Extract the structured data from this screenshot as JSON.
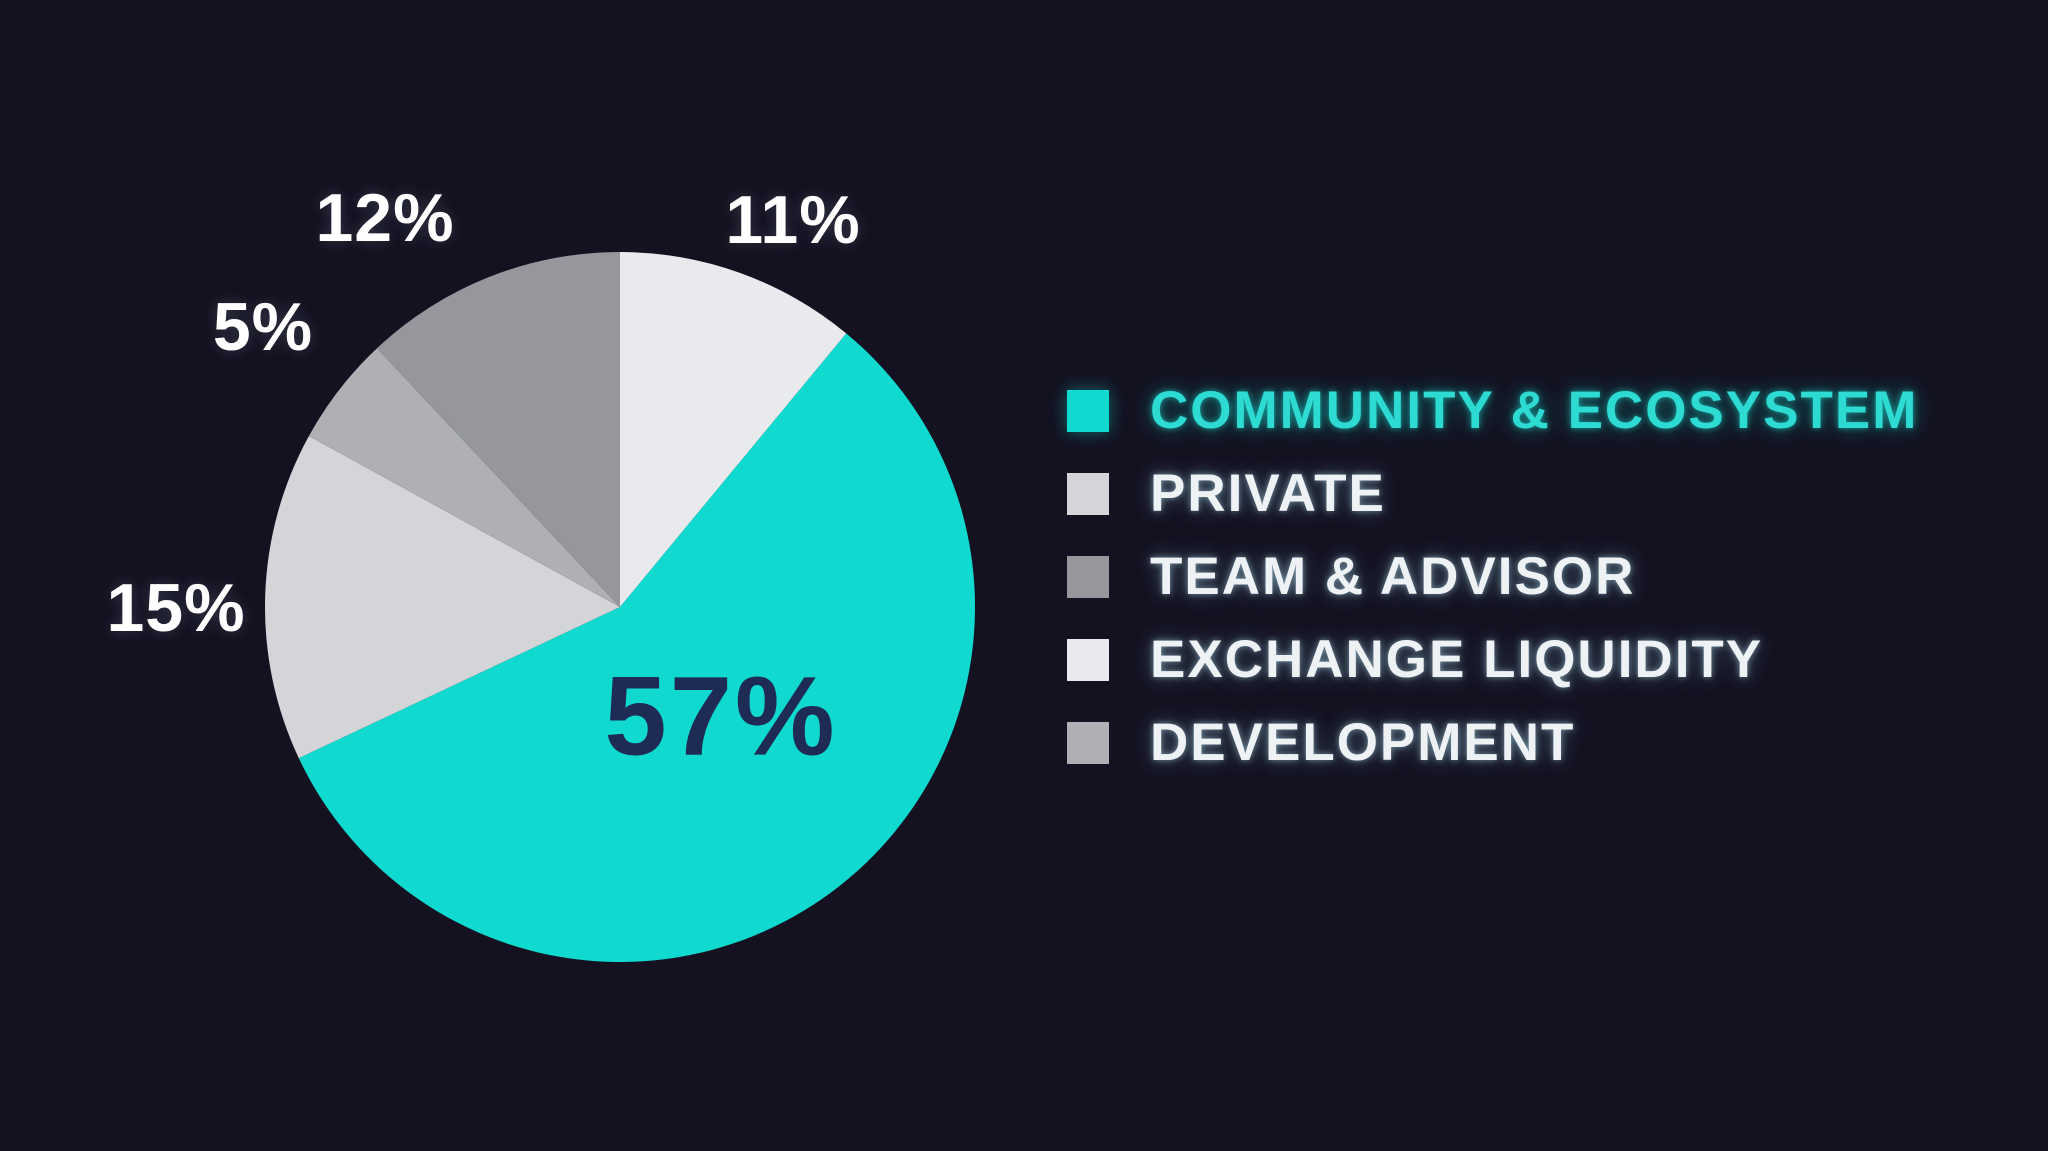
{
  "chart_data": {
    "type": "pie",
    "legend_position": "right",
    "pie_start": "top",
    "pie_direction": "clockwise",
    "pie_order": [
      "EXCHANGE LIQUIDITY",
      "COMMUNITY & ECOSYSTEM",
      "PRIVATE",
      "DEVELOPMENT",
      "TEAM & ADVISOR"
    ],
    "slices": [
      {
        "label": "COMMUNITY & ECOSYSTEM",
        "value": 57,
        "pct_label": "57%",
        "color": "#10d9cf",
        "highlight": true
      },
      {
        "label": "PRIVATE",
        "value": 15,
        "pct_label": "15%",
        "color": "#d3d5d8",
        "highlight": false
      },
      {
        "label": "TEAM & ADVISOR",
        "value": 12,
        "pct_label": "12%",
        "color": "#95979d",
        "highlight": false
      },
      {
        "label": "EXCHANGE LIQUIDITY",
        "value": 11,
        "pct_label": "11%",
        "color": "#e9eaed",
        "highlight": false
      },
      {
        "label": "DEVELOPMENT",
        "value": 5,
        "pct_label": "5%",
        "color": "#aeb0b4",
        "highlight": false
      }
    ],
    "inside_label": {
      "text": "57%",
      "color": "#1e2b55"
    }
  },
  "colors": {
    "background": "#141221",
    "outside_label_text": "#ffffff",
    "inside_label_text": "#1e2b55",
    "legend_text": "#eef2f5",
    "legend_highlight_text": "#2edbd2"
  }
}
